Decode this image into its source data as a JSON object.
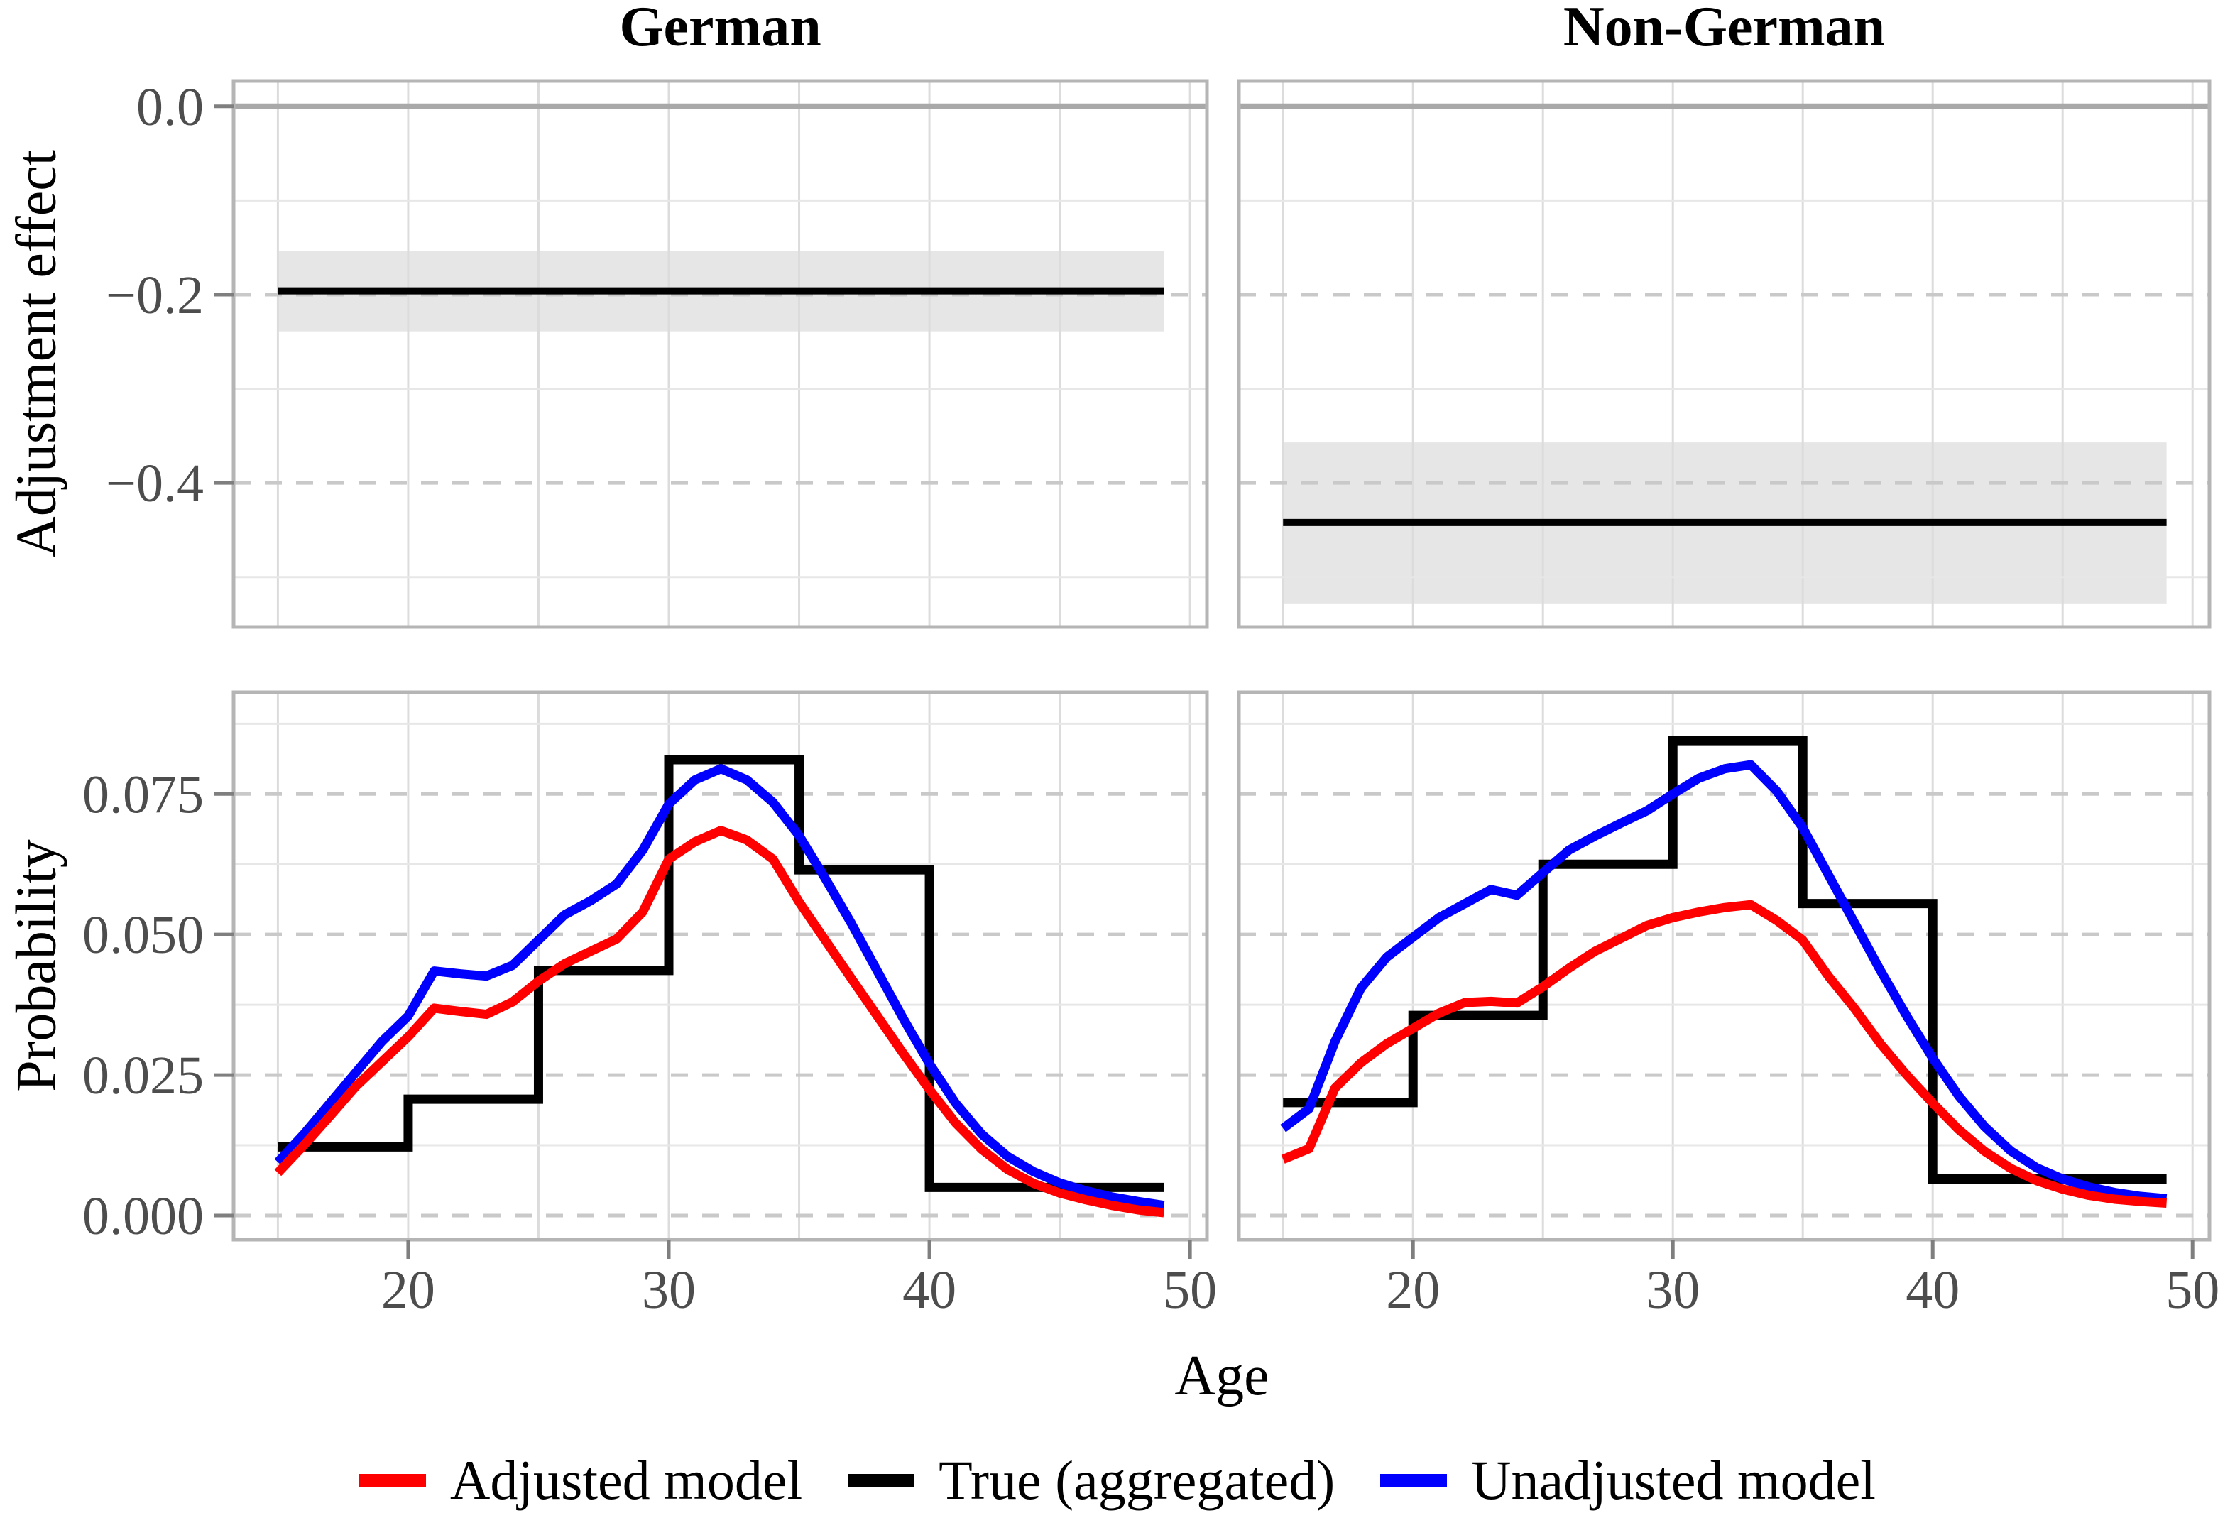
{
  "figure": {
    "facet_titles": [
      "German",
      "Non-German"
    ],
    "x_axis_title": "Age",
    "y_axis_titles": [
      "Adjustment effect",
      "Probability"
    ],
    "legend": {
      "items": [
        {
          "label": "Adjusted model",
          "color": "#FF0000"
        },
        {
          "label": "True (aggregated)",
          "color": "#000000"
        },
        {
          "label": "Unadjusted model",
          "color": "#0000FF"
        }
      ]
    },
    "colors": {
      "adjusted": "#FF0000",
      "true_aggregated": "#000000",
      "unadjusted": "#0000FF",
      "ci_band": "#E6E6E6",
      "zero_line": "#A9A9A9"
    }
  },
  "chart_data": [
    {
      "type": "line",
      "panel": "adjustment-effect-german",
      "facet": "German",
      "row": "top",
      "col": "left",
      "ylabel": "Adjustment effect",
      "xlim": [
        13.3,
        50.65
      ],
      "ylim": [
        -0.553,
        0.027
      ],
      "grid": true,
      "x_gridlines": [
        15,
        20,
        25,
        30,
        35,
        40,
        45,
        50
      ],
      "y_major": [
        0.0,
        -0.2,
        -0.4
      ],
      "y_minor": [
        -0.1,
        -0.3,
        -0.5
      ],
      "y_tick_labels": [
        "0.0",
        "−0.2",
        "−0.4"
      ],
      "zero_reference": 0.0,
      "effect": {
        "x_range": [
          15,
          49
        ],
        "estimate": -0.196,
        "ci_low": -0.239,
        "ci_high": -0.154
      }
    },
    {
      "type": "line",
      "panel": "adjustment-effect-non-german",
      "facet": "Non-German",
      "row": "top",
      "col": "right",
      "ylabel": "Adjustment effect",
      "xlim": [
        13.3,
        50.65
      ],
      "ylim": [
        -0.553,
        0.027
      ],
      "grid": true,
      "x_gridlines": [
        15,
        20,
        25,
        30,
        35,
        40,
        45,
        50
      ],
      "y_major": [
        0.0,
        -0.2,
        -0.4
      ],
      "y_minor": [
        -0.1,
        -0.3,
        -0.5
      ],
      "y_tick_labels": [],
      "zero_reference": 0.0,
      "effect": {
        "x_range": [
          15,
          49
        ],
        "estimate": -0.442,
        "ci_low": -0.528,
        "ci_high": -0.357
      }
    },
    {
      "type": "line+step",
      "panel": "probability-german",
      "facet": "German",
      "row": "bottom",
      "col": "left",
      "xlabel": "Age",
      "ylabel": "Probability",
      "xlim": [
        13.3,
        50.65
      ],
      "ylim": [
        -0.0043,
        0.0931
      ],
      "grid": true,
      "x_gridlines": [
        15,
        20,
        25,
        30,
        35,
        40,
        45,
        50
      ],
      "x_ticks": [
        20,
        30,
        40,
        50
      ],
      "x_tick_labels": [
        "20",
        "30",
        "40",
        "50"
      ],
      "y_major": [
        0.0,
        0.025,
        0.05,
        0.075
      ],
      "y_minor": [
        0.0125,
        0.0375,
        0.0625,
        0.0875
      ],
      "y_tick_labels": [
        "0.000",
        "0.025",
        "0.050",
        "0.075"
      ],
      "ages": [
        15,
        16,
        17,
        18,
        19,
        20,
        21,
        22,
        23,
        24,
        25,
        26,
        27,
        28,
        29,
        30,
        31,
        32,
        33,
        34,
        35,
        36,
        37,
        38,
        39,
        40,
        41,
        42,
        43,
        44,
        45,
        46,
        47,
        48,
        49
      ],
      "series": {
        "true_aggregated": {
          "name": "True (aggregated)",
          "breaks": [
            15,
            20,
            25,
            30,
            35,
            40,
            49
          ],
          "values": [
            0.0122,
            0.0207,
            0.0436,
            0.0811,
            0.0615,
            0.005
          ]
        },
        "unadjusted": {
          "name": "Unadjusted model",
          "values": [
            0.0095,
            0.0145,
            0.02,
            0.0255,
            0.031,
            0.0355,
            0.0435,
            0.043,
            0.0426,
            0.0445,
            0.049,
            0.0535,
            0.056,
            0.059,
            0.065,
            0.0732,
            0.0775,
            0.0795,
            0.0775,
            0.0735,
            0.0676,
            0.06,
            0.052,
            0.0435,
            0.035,
            0.027,
            0.02,
            0.0145,
            0.0105,
            0.0078,
            0.0058,
            0.0044,
            0.0033,
            0.0025,
            0.0018
          ]
        },
        "adjusted": {
          "name": "Adjusted model",
          "values": [
            0.0076,
            0.0125,
            0.0177,
            0.023,
            0.0274,
            0.0318,
            0.0369,
            0.0363,
            0.0358,
            0.038,
            0.0417,
            0.0448,
            0.047,
            0.0492,
            0.054,
            0.0634,
            0.0665,
            0.0685,
            0.0668,
            0.0634,
            0.0558,
            0.049,
            0.0422,
            0.0355,
            0.0288,
            0.0224,
            0.0165,
            0.0118,
            0.0082,
            0.0057,
            0.004,
            0.0028,
            0.0018,
            0.001,
            0.0005
          ]
        }
      }
    },
    {
      "type": "line+step",
      "panel": "probability-non-german",
      "facet": "Non-German",
      "row": "bottom",
      "col": "right",
      "xlabel": "Age",
      "ylabel": "Probability",
      "xlim": [
        13.3,
        50.65
      ],
      "ylim": [
        -0.0043,
        0.0931
      ],
      "grid": true,
      "x_gridlines": [
        15,
        20,
        25,
        30,
        35,
        40,
        45,
        50
      ],
      "x_ticks": [
        20,
        30,
        40,
        50
      ],
      "x_tick_labels": [
        "20",
        "30",
        "40",
        "50"
      ],
      "y_major": [
        0.0,
        0.025,
        0.05,
        0.075
      ],
      "y_minor": [
        0.0125,
        0.0375,
        0.0625,
        0.0875
      ],
      "y_tick_labels": [],
      "ages": [
        15,
        16,
        17,
        18,
        19,
        20,
        21,
        22,
        23,
        24,
        25,
        26,
        27,
        28,
        29,
        30,
        31,
        32,
        33,
        34,
        35,
        36,
        37,
        38,
        39,
        40,
        41,
        42,
        43,
        44,
        45,
        46,
        47,
        48,
        49
      ],
      "series": {
        "true_aggregated": {
          "name": "True (aggregated)",
          "breaks": [
            15,
            20,
            25,
            30,
            35,
            40,
            49
          ],
          "values": [
            0.0201,
            0.0356,
            0.0625,
            0.0845,
            0.0555,
            0.0065
          ]
        },
        "unadjusted": {
          "name": "Unadjusted model",
          "values": [
            0.0155,
            0.019,
            0.031,
            0.0405,
            0.046,
            0.0495,
            0.053,
            0.0555,
            0.058,
            0.057,
            0.061,
            0.065,
            0.0675,
            0.0698,
            0.072,
            0.075,
            0.0778,
            0.0795,
            0.0802,
            0.0755,
            0.069,
            0.0605,
            0.052,
            0.0435,
            0.0355,
            0.028,
            0.0213,
            0.0158,
            0.0115,
            0.0085,
            0.0065,
            0.0051,
            0.0041,
            0.0034,
            0.003
          ]
        },
        "adjusted": {
          "name": "Adjusted model",
          "values": [
            0.01,
            0.0119,
            0.0227,
            0.0272,
            0.0306,
            0.0333,
            0.036,
            0.0379,
            0.0381,
            0.0378,
            0.0407,
            0.044,
            0.047,
            0.0493,
            0.0516,
            0.053,
            0.054,
            0.0548,
            0.0553,
            0.0525,
            0.049,
            0.0425,
            0.0368,
            0.0305,
            0.025,
            0.02,
            0.0153,
            0.0114,
            0.0084,
            0.0062,
            0.0047,
            0.0036,
            0.0029,
            0.0025,
            0.0022
          ]
        }
      }
    }
  ]
}
